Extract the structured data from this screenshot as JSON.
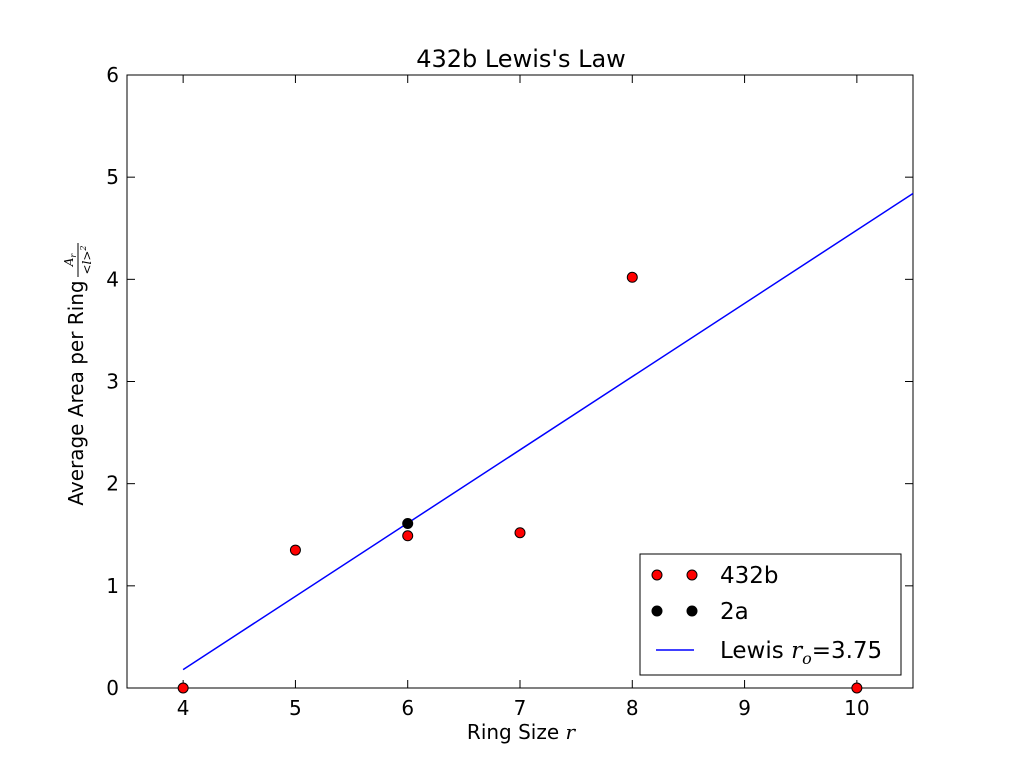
{
  "chart_data": {
    "type": "scatter",
    "title": "432b Lewis's Law",
    "xlabel": "Ring Size ",
    "xlabel_math": "r",
    "ylabel": "Average Area per Ring ",
    "ylabel_frac_numerator": "A_r",
    "ylabel_frac_denominator": "<l>^2",
    "xlim": [
      3.5,
      10.5
    ],
    "ylim": [
      0,
      6
    ],
    "xticks": [
      4,
      5,
      6,
      7,
      8,
      9,
      10
    ],
    "yticks": [
      0,
      1,
      2,
      3,
      4,
      5,
      6
    ],
    "grid": false,
    "legend_placement": "lower-right",
    "series": [
      {
        "name": "432b",
        "kind": "markers",
        "color": "#ff0000",
        "edge_color": "#000000",
        "points": [
          {
            "x": 4,
            "y": 0.0
          },
          {
            "x": 5,
            "y": 1.35
          },
          {
            "x": 6,
            "y": 1.49
          },
          {
            "x": 7,
            "y": 1.52
          },
          {
            "x": 8,
            "y": 4.02
          },
          {
            "x": 10,
            "y": 0.0
          }
        ]
      },
      {
        "name": "2a",
        "kind": "markers",
        "color": "#000000",
        "edge_color": "#000000",
        "points": [
          {
            "x": 6,
            "y": 1.61
          }
        ]
      },
      {
        "name": "Lewis ",
        "name_math": "r_o",
        "name_suffix": "=3.75",
        "kind": "line",
        "color": "#0000ff",
        "points": [
          {
            "x": 4,
            "y": 0.18
          },
          {
            "x": 10.5,
            "y": 4.84
          }
        ]
      }
    ]
  }
}
